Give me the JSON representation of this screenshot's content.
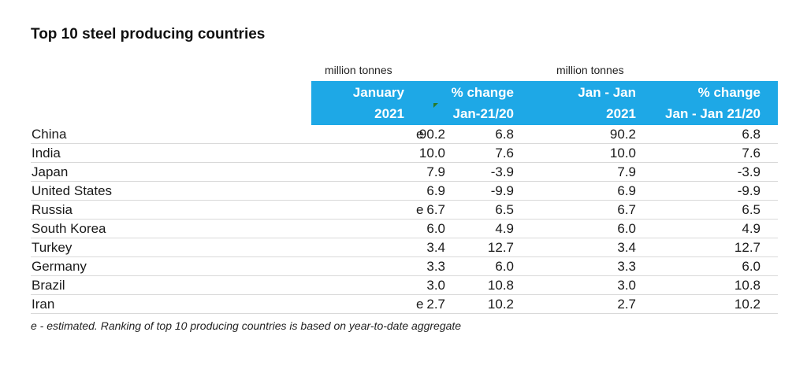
{
  "title": "Top 10 steel producing countries",
  "units": [
    "million tonnes",
    "million tonnes"
  ],
  "header": {
    "col1": [
      "January",
      "2021"
    ],
    "col2": [
      "% change",
      "Jan-21/20"
    ],
    "col3": [
      "Jan - Jan",
      "2021"
    ],
    "col4": [
      "% change",
      "Jan - Jan 21/20"
    ]
  },
  "colors": {
    "header_bg": "#1ea8e6",
    "header_text": "#ffffff",
    "row_divider": "#d9d9d9"
  },
  "rows": [
    {
      "country": "China",
      "jan2021": "90.2",
      "flag": "e",
      "pct_jan": "6.8",
      "ytd2021": "90.2",
      "pct_ytd": "6.8"
    },
    {
      "country": "India",
      "jan2021": "10.0",
      "flag": "",
      "pct_jan": "7.6",
      "ytd2021": "10.0",
      "pct_ytd": "7.6"
    },
    {
      "country": "Japan",
      "jan2021": "7.9",
      "flag": "",
      "pct_jan": "-3.9",
      "ytd2021": "7.9",
      "pct_ytd": "-3.9"
    },
    {
      "country": "United States",
      "jan2021": "6.9",
      "flag": "",
      "pct_jan": "-9.9",
      "ytd2021": "6.9",
      "pct_ytd": "-9.9"
    },
    {
      "country": "Russia",
      "jan2021": "6.7",
      "flag": "e",
      "pct_jan": "6.5",
      "ytd2021": "6.7",
      "pct_ytd": "6.5"
    },
    {
      "country": "South Korea",
      "jan2021": "6.0",
      "flag": "",
      "pct_jan": "4.9",
      "ytd2021": "6.0",
      "pct_ytd": "4.9"
    },
    {
      "country": "Turkey",
      "jan2021": "3.4",
      "flag": "",
      "pct_jan": "12.7",
      "ytd2021": "3.4",
      "pct_ytd": "12.7"
    },
    {
      "country": "Germany",
      "jan2021": "3.3",
      "flag": "",
      "pct_jan": "6.0",
      "ytd2021": "3.3",
      "pct_ytd": "6.0"
    },
    {
      "country": "Brazil",
      "jan2021": "3.0",
      "flag": "",
      "pct_jan": "10.8",
      "ytd2021": "3.0",
      "pct_ytd": "10.8"
    },
    {
      "country": "Iran",
      "jan2021": "2.7",
      "flag": "e",
      "pct_jan": "10.2",
      "ytd2021": "2.7",
      "pct_ytd": "10.2"
    }
  ],
  "footnote": "e - estimated. Ranking of top 10 producing countries is based on year-to-date aggregate"
}
